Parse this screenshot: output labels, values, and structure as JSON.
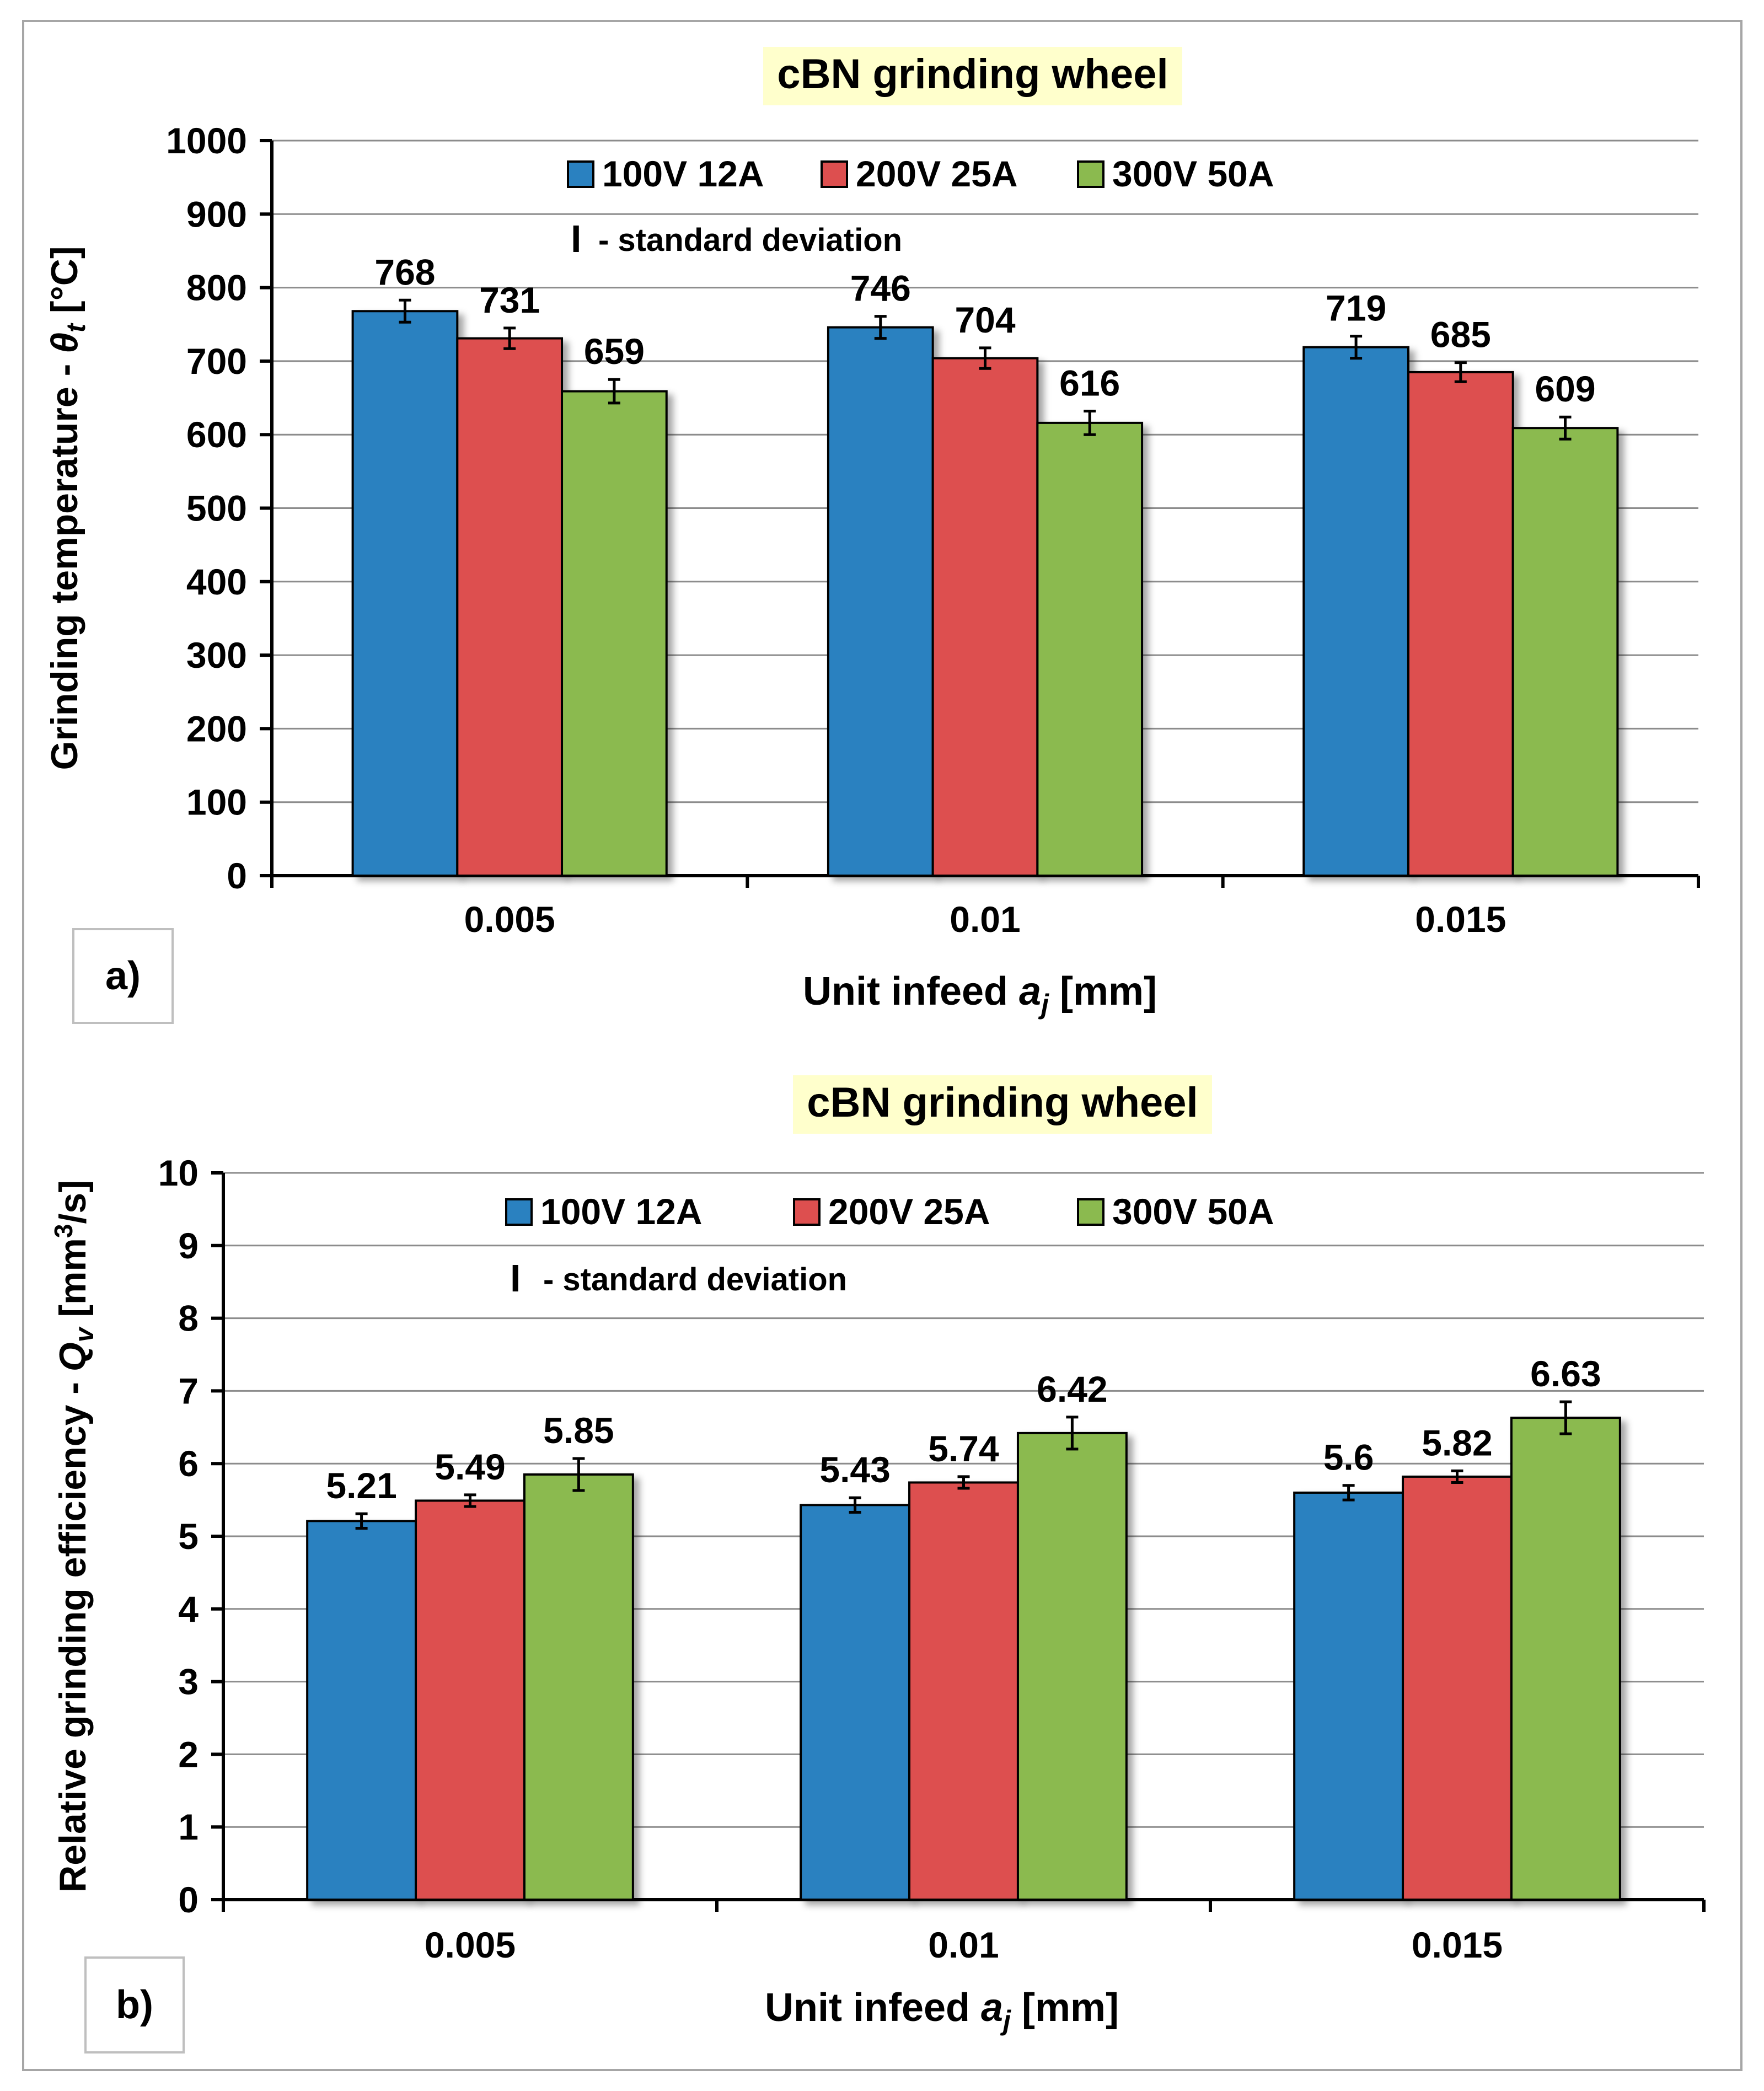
{
  "chart_data": [
    {
      "panel_label": "a)",
      "type": "bar",
      "title": "cBN grinding wheel",
      "ylabel": "Grinding temperature - θt [°C]",
      "ylabel_main": "Grinding temperature - ",
      "ylabel_sym": "θ",
      "ylabel_sub": "t",
      "ylabel_unit": " [°C]",
      "xlabel_main": "Unit infeed ",
      "xlabel_sym": "a",
      "xlabel_sub": "j",
      "xlabel_unit": " [mm]",
      "ylim": [
        0,
        1000
      ],
      "yticks": [
        "0",
        "100",
        "200",
        "300",
        "400",
        "500",
        "600",
        "700",
        "800",
        "900",
        "1000"
      ],
      "categories": [
        "0.005",
        "0.01",
        "0.015"
      ],
      "series": [
        {
          "name": "100V 12A",
          "color": "#2a81c0",
          "values": [
            768,
            746,
            719
          ],
          "labels": [
            "768",
            "746",
            "719"
          ],
          "error": [
            15,
            15,
            15
          ]
        },
        {
          "name": "200V 25A",
          "color": "#dd4f4f",
          "values": [
            731,
            704,
            685
          ],
          "labels": [
            "731",
            "704",
            "685"
          ],
          "error": [
            14,
            14,
            13
          ]
        },
        {
          "name": "300V 50A",
          "color": "#8bba4f",
          "values": [
            659,
            616,
            609
          ],
          "labels": [
            "659",
            "616",
            "609"
          ],
          "error": [
            16,
            16,
            15
          ]
        }
      ],
      "std_note": "- standard deviation",
      "std_glyph": "I"
    },
    {
      "panel_label": "b)",
      "type": "bar",
      "title": "cBN grinding wheel",
      "ylabel": "Relative grinding efficiency - Qv [mm3/s]",
      "ylabel_main": "Relative grinding efficiency - ",
      "ylabel_sym": "Q",
      "ylabel_sub": "v",
      "ylabel_unit": " [mm",
      "ylabel_sup": "3",
      "ylabel_unit2": "/s]",
      "xlabel_main": "Unit infeed ",
      "xlabel_sym": "a",
      "xlabel_sub": "j",
      "xlabel_unit": " [mm]",
      "ylim": [
        0,
        10
      ],
      "yticks": [
        "0",
        "1",
        "2",
        "3",
        "4",
        "5",
        "6",
        "7",
        "8",
        "9",
        "10"
      ],
      "categories": [
        "0.005",
        "0.01",
        "0.015"
      ],
      "series": [
        {
          "name": "100V 12A",
          "color": "#2a81c0",
          "values": [
            5.21,
            5.43,
            5.6
          ],
          "labels": [
            "5.21",
            "5.43",
            "5.6"
          ],
          "error": [
            0.1,
            0.1,
            0.1
          ]
        },
        {
          "name": "200V 25A",
          "color": "#dd4f4f",
          "values": [
            5.49,
            5.74,
            5.82
          ],
          "labels": [
            "5.49",
            "5.74",
            "5.82"
          ],
          "error": [
            0.08,
            0.08,
            0.08
          ]
        },
        {
          "name": "300V 50A",
          "color": "#8bba4f",
          "values": [
            5.85,
            6.42,
            6.63
          ],
          "labels": [
            "5.85",
            "6.42",
            "6.63"
          ],
          "error": [
            0.22,
            0.22,
            0.22
          ]
        }
      ],
      "std_note": "- standard deviation",
      "std_glyph": "I"
    }
  ]
}
